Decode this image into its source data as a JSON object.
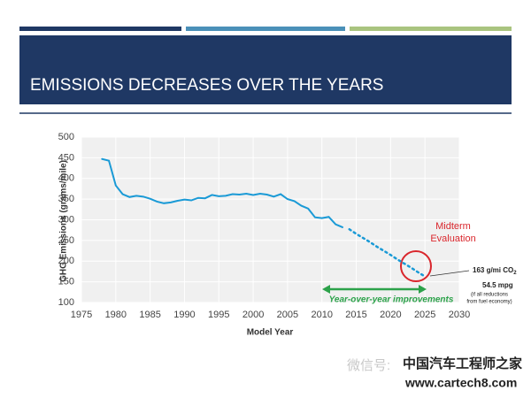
{
  "header": {
    "title": "EMISSIONS DECREASES OVER THE YEARS"
  },
  "watermark": {
    "wechat": "微信号:",
    "brand": "中国汽车工程师之家",
    "site": "www.cartech8.com"
  },
  "chart_data": {
    "type": "line",
    "xlabel": "Model Year",
    "ylabel": "GHG Emissions (grams/mile)",
    "xlim": [
      1975,
      2030
    ],
    "xticks": [
      1975,
      1980,
      1985,
      1990,
      1995,
      2000,
      2005,
      2010,
      2015,
      2020,
      2025,
      2030
    ],
    "ylim": [
      100,
      500
    ],
    "yticks": [
      100,
      150,
      200,
      250,
      300,
      350,
      400,
      450,
      500
    ],
    "grid": true,
    "series": [
      {
        "color": "#1a9ad6",
        "style": "solid",
        "x": [
          1978,
          1979,
          1980,
          1981,
          1982,
          1983,
          1984,
          1985,
          1986,
          1987,
          1988,
          1989,
          1990,
          1991,
          1992,
          1993,
          1994,
          1995,
          1996,
          1997,
          1998,
          1999,
          2000,
          2001,
          2002,
          2003,
          2004,
          2005,
          2006,
          2007,
          2008,
          2009,
          2010,
          2011,
          2012,
          2013
        ],
        "values": [
          447,
          443,
          383,
          362,
          355,
          358,
          356,
          351,
          344,
          340,
          342,
          346,
          349,
          347,
          353,
          352,
          360,
          357,
          358,
          362,
          361,
          363,
          360,
          363,
          361,
          356,
          362,
          350,
          345,
          334,
          327,
          306,
          304,
          307,
          289,
          282
        ]
      },
      {
        "color": "#1a9ad6",
        "style": "dotted",
        "x": [
          2014,
          2015,
          2016,
          2017,
          2018,
          2019,
          2020,
          2021,
          2022,
          2023,
          2024,
          2025
        ],
        "values": [
          277,
          266,
          256,
          246,
          235,
          225,
          215,
          204,
          194,
          184,
          173,
          163
        ]
      }
    ],
    "annotations": {
      "midterm": [
        "Midterm",
        "Evaluation"
      ],
      "co2": "163 g/mi CO",
      "co2_sub": "2",
      "mpg": "54.5 mpg",
      "note": [
        "(if all reductions",
        "from fuel economy)"
      ],
      "improvements": "Year-over-year improvements"
    }
  }
}
